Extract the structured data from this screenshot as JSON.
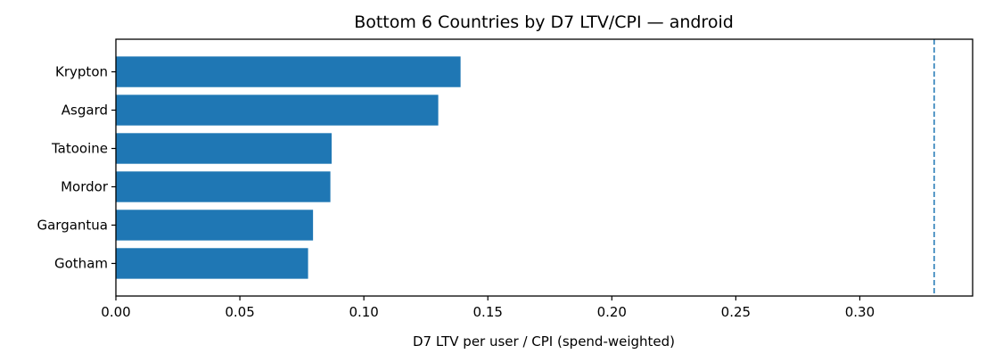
{
  "chart_data": {
    "type": "bar",
    "orientation": "horizontal",
    "title": "Bottom 6 Countries by D7 LTV/CPI — android",
    "xlabel": "D7 LTV per user / CPI (spend-weighted)",
    "ylabel": "",
    "categories": [
      "Krypton",
      "Asgard",
      "Tatooine",
      "Mordor",
      "Gargantua",
      "Gotham"
    ],
    "values": [
      0.139,
      0.13,
      0.087,
      0.0865,
      0.0795,
      0.0775
    ],
    "xlim": [
      0,
      0.3455
    ],
    "xticks": [
      0.0,
      0.05,
      0.1,
      0.15,
      0.2,
      0.25,
      0.3
    ],
    "xtick_labels": [
      "0.00",
      "0.05",
      "0.10",
      "0.15",
      "0.20",
      "0.25",
      "0.30"
    ],
    "reference_line": {
      "x": 0.33,
      "style": "dashed"
    },
    "grid": false,
    "colors": {
      "bar": "#1f77b4",
      "reference_line": "#1f77b4",
      "axes": "#000000"
    }
  }
}
